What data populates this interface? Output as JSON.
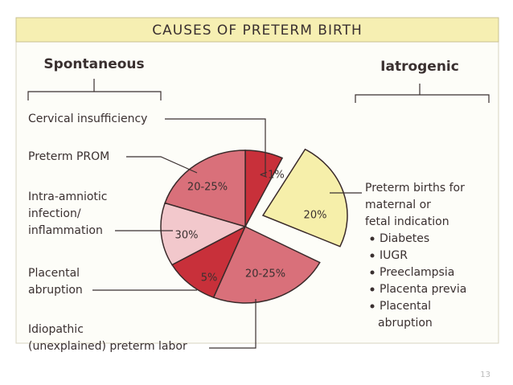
{
  "title": "CAUSES OF PRETERM BIRTH",
  "groups": {
    "spontaneous": "Spontaneous",
    "iatrogenic": "Iatrogenic"
  },
  "causes": [
    {
      "label": [
        "Cervical insufficiency"
      ],
      "slice": "<1%"
    },
    {
      "label": [
        "Preterm PROM"
      ],
      "slice": "20-25%"
    },
    {
      "label": [
        "Intra-amniotic",
        "infection/",
        "inflammation"
      ],
      "slice": "30%"
    },
    {
      "label": [
        "Placental",
        "abruption"
      ],
      "slice": "5%"
    },
    {
      "label": [
        "Idiopathic",
        "(unexplained) preterm labor"
      ],
      "slice": "20-25%"
    },
    {
      "label": [
        "Preterm births for",
        "maternal or",
        "fetal indication"
      ],
      "slice": "20%"
    }
  ],
  "indications": [
    "Diabetes",
    "IUGR",
    "Preeclampsia",
    "Placenta previa",
    "Placental",
    "abruption"
  ],
  "page_number": "13"
}
